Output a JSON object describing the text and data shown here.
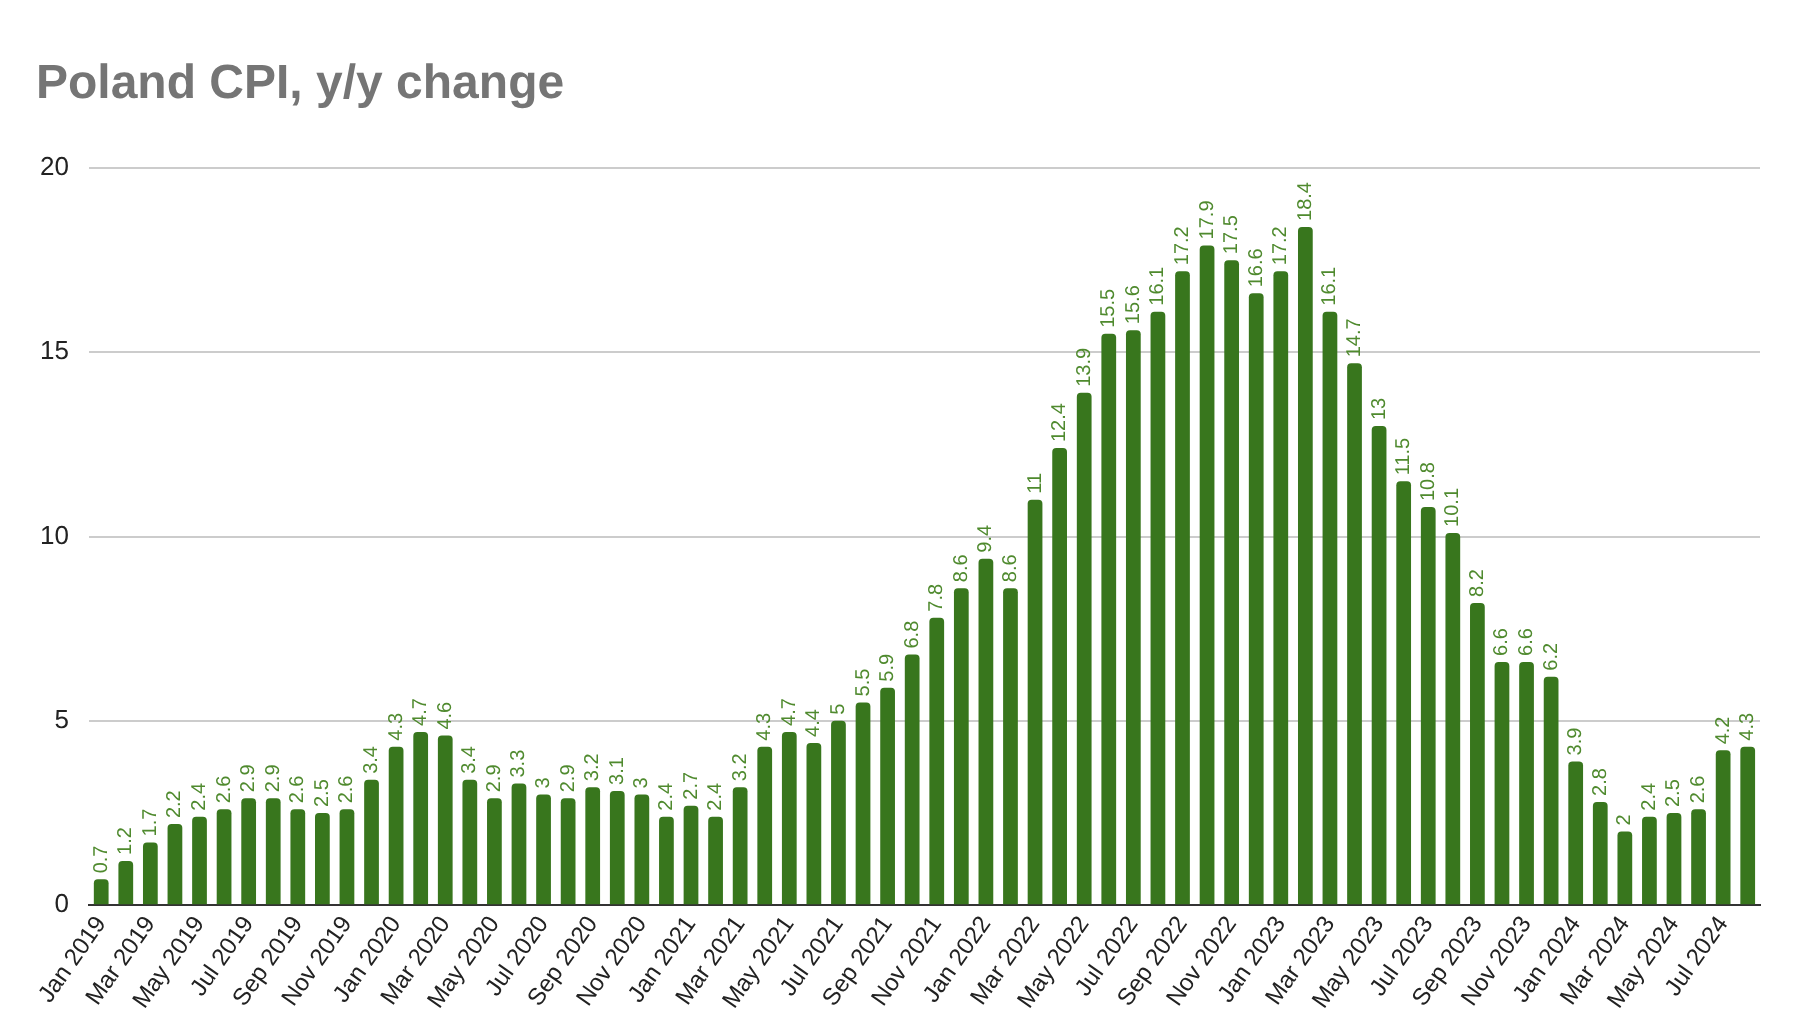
{
  "chart_data": {
    "type": "bar",
    "title": "Poland CPI, y/y change",
    "categories": [
      "Jan 2019",
      null,
      "Mar 2019",
      null,
      "May 2019",
      null,
      "Jul 2019",
      null,
      "Sep 2019",
      null,
      "Nov 2019",
      null,
      "Jan 2020",
      null,
      "Mar 2020",
      null,
      "May 2020",
      null,
      "Jul 2020",
      null,
      "Sep 2020",
      null,
      "Nov 2020",
      null,
      "Jan 2021",
      null,
      "Mar 2021",
      null,
      "May 2021",
      null,
      "Jul 2021",
      null,
      "Sep 2021",
      null,
      "Nov 2021",
      null,
      "Jan 2022",
      null,
      "Mar 2022",
      null,
      "May 2022",
      null,
      "Jul 2022",
      null,
      "Sep 2022",
      null,
      "Nov 2022",
      null,
      "Jan 2023",
      null,
      "Mar 2023",
      null,
      "May 2023",
      null,
      "Jul 2023",
      null,
      "Sep 2023",
      null,
      "Nov 2023",
      null,
      "Jan 2024",
      null,
      "Mar 2024",
      null,
      "May 2024",
      null,
      "Jul 2024",
      null
    ],
    "values": [
      0.7,
      1.2,
      1.7,
      2.2,
      2.4,
      2.6,
      2.9,
      2.9,
      2.6,
      2.5,
      2.6,
      3.4,
      4.3,
      4.7,
      4.6,
      3.4,
      2.9,
      3.3,
      3.0,
      2.9,
      3.2,
      3.1,
      3.0,
      2.4,
      2.7,
      2.4,
      3.2,
      4.3,
      4.7,
      4.4,
      5.0,
      5.5,
      5.9,
      6.8,
      7.8,
      8.6,
      9.4,
      8.6,
      11,
      12.4,
      13.9,
      15.5,
      15.6,
      16.1,
      17.2,
      17.9,
      17.5,
      16.6,
      17.2,
      18.4,
      16.1,
      14.7,
      13,
      11.5,
      10.8,
      10.1,
      8.2,
      6.6,
      6.6,
      6.2,
      3.9,
      2.8,
      2,
      2.4,
      2.5,
      2.6,
      4.2,
      4.3
    ],
    "color": "#38761d",
    "ylim": [
      0,
      20
    ],
    "yticks": [
      0,
      5,
      10,
      15,
      20
    ],
    "grid": "y",
    "data_labels": true
  }
}
